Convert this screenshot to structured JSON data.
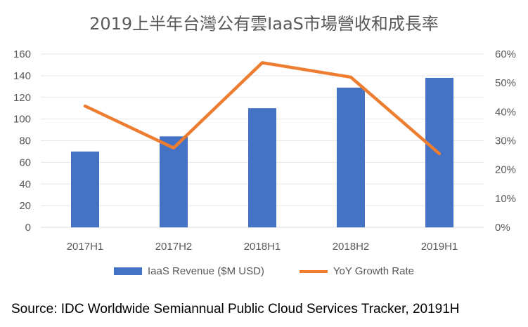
{
  "chart_data": {
    "type": "bar",
    "title": "2019上半年台灣公有雲IaaS市場營收和成長率",
    "categories": [
      "2017H1",
      "2017H2",
      "2018H1",
      "2018H2",
      "2019H1"
    ],
    "series": [
      {
        "name": "IaaS Revenue ($M USD)",
        "type": "bar",
        "axis": "left",
        "color": "#4472C4",
        "values": [
          70,
          84,
          110,
          129,
          138
        ]
      },
      {
        "name": "YoY Growth Rate",
        "type": "line",
        "axis": "right",
        "color": "#ED7D31",
        "values": [
          0.42,
          0.275,
          0.57,
          0.52,
          0.255
        ]
      }
    ],
    "y_left": {
      "min": 0,
      "max": 160,
      "ticks": [
        "0",
        "20",
        "40",
        "60",
        "80",
        "100",
        "120",
        "140",
        "160"
      ]
    },
    "y_right": {
      "min": 0,
      "max": 0.6,
      "ticks": [
        "0%",
        "10%",
        "20%",
        "30%",
        "40%",
        "50%",
        "60%"
      ]
    },
    "grid": true,
    "legend": "bottom"
  },
  "source": "Source: IDC Worldwide Semiannual Public Cloud Services Tracker, 20191H"
}
